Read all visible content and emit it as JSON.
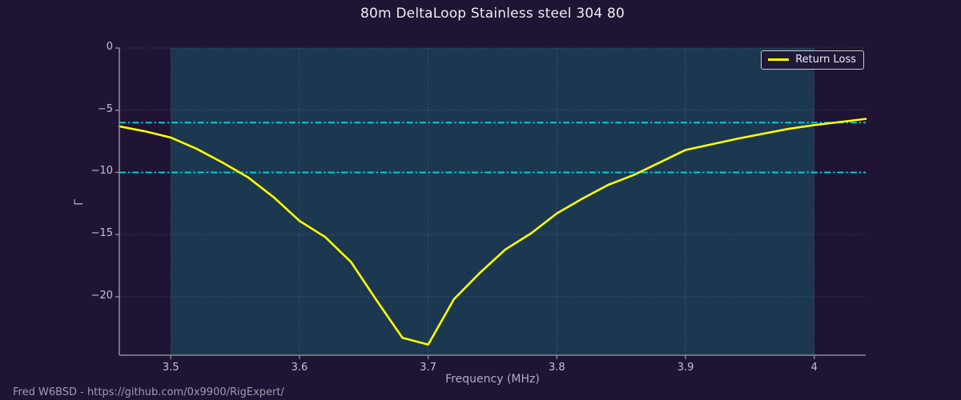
{
  "figure": {
    "title": "80m DeltaLoop Stainless steel 304 80",
    "footer": "Fred W6BSD - https://github.com/0x9900/RigExpert/"
  },
  "colors": {
    "background": "#1f1433",
    "band_fill": "#1c3850",
    "curve": "#ffff00",
    "threshold": "#00dce8",
    "grid": "#9aa0b4",
    "spine": "#8c8c8c",
    "title_text": "#efecf4",
    "tick_text": "#c6c0d2",
    "axis_label_text": "#b3adc2",
    "footer_text": "#a09aae",
    "legend_border": "#c9c9c9",
    "legend_bg": "rgba(32,22,54,0.9)",
    "legend_text": "#efecf4"
  },
  "chart_data": {
    "type": "line",
    "title": "80m DeltaLoop Stainless steel 304 80",
    "xlabel": "Frequency (MHz)",
    "ylabel": "Γ",
    "xlim": [
      3.46,
      4.04
    ],
    "ylim": [
      -24.7,
      0
    ],
    "grid": true,
    "x_ticks": [
      3.5,
      3.6,
      3.7,
      3.8,
      3.9,
      4.0
    ],
    "x_tick_labels": [
      "3.5",
      "3.6",
      "3.7",
      "3.8",
      "3.9",
      "4"
    ],
    "y_ticks": [
      0,
      -5,
      -10,
      -15,
      -20
    ],
    "y_tick_labels": [
      "0",
      "−5",
      "−10",
      "−15",
      "−20"
    ],
    "band": {
      "x0": 3.5,
      "x1": 4.0
    },
    "threshold_lines": [
      {
        "y": -6
      },
      {
        "y": -10
      }
    ],
    "legend": {
      "position": "upper right",
      "entries": [
        {
          "label": "Return Loss",
          "color": "#ffff00"
        }
      ]
    },
    "series": [
      {
        "name": "Return Loss",
        "x": [
          3.46,
          3.48,
          3.5,
          3.52,
          3.54,
          3.56,
          3.58,
          3.6,
          3.62,
          3.64,
          3.66,
          3.68,
          3.7,
          3.72,
          3.74,
          3.76,
          3.78,
          3.8,
          3.82,
          3.84,
          3.86,
          3.88,
          3.9,
          3.92,
          3.94,
          3.96,
          3.98,
          4.0,
          4.02,
          4.04
        ],
        "y": [
          -6.3,
          -6.7,
          -7.2,
          -8.1,
          -9.2,
          -10.4,
          -12.0,
          -13.9,
          -15.2,
          -17.2,
          -20.3,
          -23.3,
          -23.85,
          -20.2,
          -18.1,
          -16.2,
          -14.9,
          -13.3,
          -12.1,
          -11.0,
          -10.2,
          -9.2,
          -8.2,
          -7.75,
          -7.3,
          -6.9,
          -6.5,
          -6.2,
          -5.95,
          -5.7
        ]
      }
    ]
  }
}
